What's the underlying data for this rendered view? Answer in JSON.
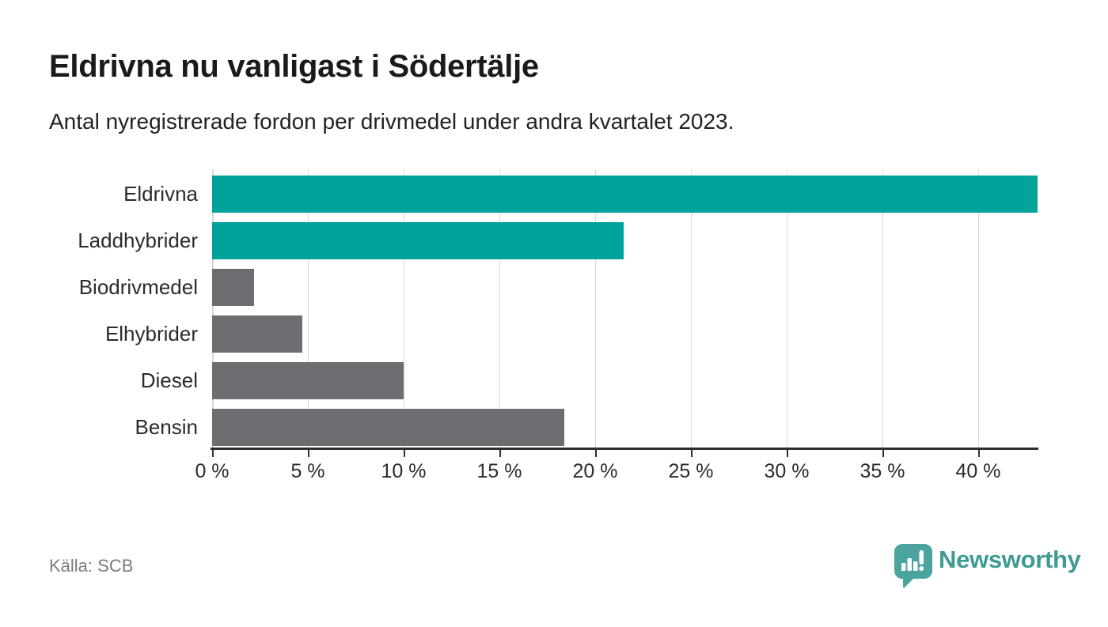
{
  "chart_data": {
    "type": "bar",
    "orientation": "horizontal",
    "title": "Eldrivna nu vanligast i Södertälje",
    "subtitle": "Antal nyregistrerade fordon per drivmedel under andra kvartalet 2023.",
    "categories": [
      "Eldrivna",
      "Laddhybrider",
      "Biodrivmedel",
      "Elhybrider",
      "Diesel",
      "Bensin"
    ],
    "values": [
      43.1,
      21.5,
      2.2,
      4.7,
      10.0,
      18.4
    ],
    "bar_colors": [
      "#00a39a",
      "#00a39a",
      "#6e6e72",
      "#6e6e72",
      "#6e6e72",
      "#6e6e72"
    ],
    "xlabel": "",
    "ylabel": "",
    "xlim": [
      0,
      43.1
    ],
    "x_ticks": [
      0,
      5,
      10,
      15,
      20,
      25,
      30,
      35,
      40
    ],
    "x_tick_labels": [
      "0 %",
      "5 %",
      "10 %",
      "15 %",
      "20 %",
      "25 %",
      "30 %",
      "35 %",
      "40 %"
    ],
    "grid": true,
    "legend": false
  },
  "colors": {
    "highlight_teal": "#00a39a",
    "neutral_gray": "#6e6e72",
    "brand_teal": "#3f9a94",
    "gridline": "#d9d9d9",
    "axis": "#2f2f2f"
  },
  "footer": {
    "source": "Källa: SCB",
    "brand": "Newsworthy",
    "brand_icon": "newsworthy-bubble-chart-icon"
  }
}
